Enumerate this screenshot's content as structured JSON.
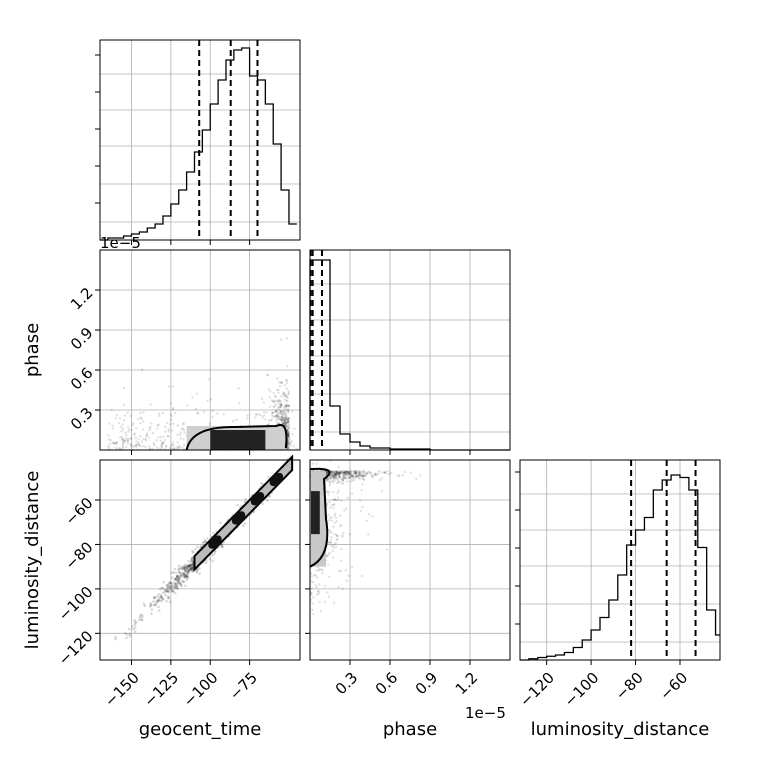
{
  "chart_data": {
    "type": "corner",
    "grid": true,
    "variables": [
      "geocent_time",
      "phase",
      "luminosity_distance"
    ],
    "axes": {
      "geocent_time": {
        "range": [
          -170,
          -43
        ],
        "ticks": [
          -150,
          -125,
          -100,
          -75
        ],
        "tick_labels": [
          "−150",
          "−125",
          "−100",
          "−75"
        ]
      },
      "phase": {
        "range": [
          0,
          1.5
        ],
        "ticks": [
          0.3,
          0.6,
          0.9,
          1.2
        ],
        "tick_labels": [
          "0.3",
          "0.6",
          "0.9",
          "1.2"
        ],
        "offset": "1e−5"
      },
      "luminosity_distance": {
        "range": [
          -132,
          -42
        ],
        "ticks": [
          -120,
          -100,
          -80,
          -60
        ],
        "tick_labels": [
          "−120",
          "−100",
          "−80",
          "−60"
        ]
      }
    },
    "panels": [
      {
        "id": "hist_geocent_time",
        "type": "histogram",
        "variable": "geocent_time",
        "bins": [
          -170,
          -165,
          -160,
          -155,
          -150,
          -145,
          -140,
          -135,
          -130,
          -125,
          -120,
          -115,
          -110,
          -105,
          -100,
          -95,
          -90,
          -85,
          -80,
          -75,
          -70,
          -65,
          -60,
          -55,
          -50,
          -45
        ],
        "counts": [
          0,
          1,
          1,
          2,
          3,
          4,
          6,
          8,
          12,
          18,
          25,
          34,
          44,
          55,
          68,
          80,
          90,
          95,
          96,
          82,
          80,
          68,
          48,
          25,
          8
        ],
        "ymax": 100,
        "quantiles": [
          -107,
          -87,
          -70
        ]
      },
      {
        "id": "hist_phase",
        "type": "histogram",
        "variable": "phase",
        "bins": [
          0,
          0.075,
          0.15,
          0.225,
          0.3,
          0.375,
          0.45,
          0.6,
          0.9,
          1.5
        ],
        "counts": [
          95,
          95,
          22,
          8,
          4,
          2,
          1,
          0.5,
          0
        ],
        "ymax": 100,
        "quantiles": [
          0.005,
          0.02,
          0.09
        ]
      },
      {
        "id": "hist_luminosity_distance",
        "type": "histogram",
        "variable": "luminosity_distance",
        "bins": [
          -132,
          -128,
          -124,
          -120,
          -116,
          -112,
          -108,
          -104,
          -100,
          -96,
          -92,
          -88,
          -84,
          -80,
          -76,
          -72,
          -68,
          -64,
          -60,
          -56,
          -52,
          -48,
          -44,
          -42
        ],
        "counts": [
          0,
          0.5,
          1,
          1.5,
          2,
          3,
          5,
          8,
          12,
          17,
          24,
          34,
          46,
          52,
          57,
          68,
          72,
          74,
          73,
          68,
          45,
          20,
          10
        ],
        "ymax": 80,
        "quantiles": [
          -82,
          -66,
          -53
        ]
      },
      {
        "id": "scatter_phase_vs_geocent_time",
        "type": "scatter_contour",
        "x": "geocent_time",
        "y": "phase",
        "contour_x_range": [
          -115,
          -52
        ],
        "contour_y_range": [
          0,
          0.18
        ]
      },
      {
        "id": "scatter_luminosity_distance_vs_geocent_time",
        "type": "scatter_contour",
        "x": "geocent_time",
        "y": "luminosity_distance",
        "trend": {
          "x": [
            -165,
            -50
          ],
          "y": [
            -128,
            -45
          ]
        }
      },
      {
        "id": "scatter_luminosity_distance_vs_phase",
        "type": "scatter_contour",
        "x": "phase",
        "y": "luminosity_distance",
        "contour_x_range": [
          0,
          0.12
        ],
        "contour_y_range": [
          -90,
          -47
        ]
      }
    ]
  }
}
